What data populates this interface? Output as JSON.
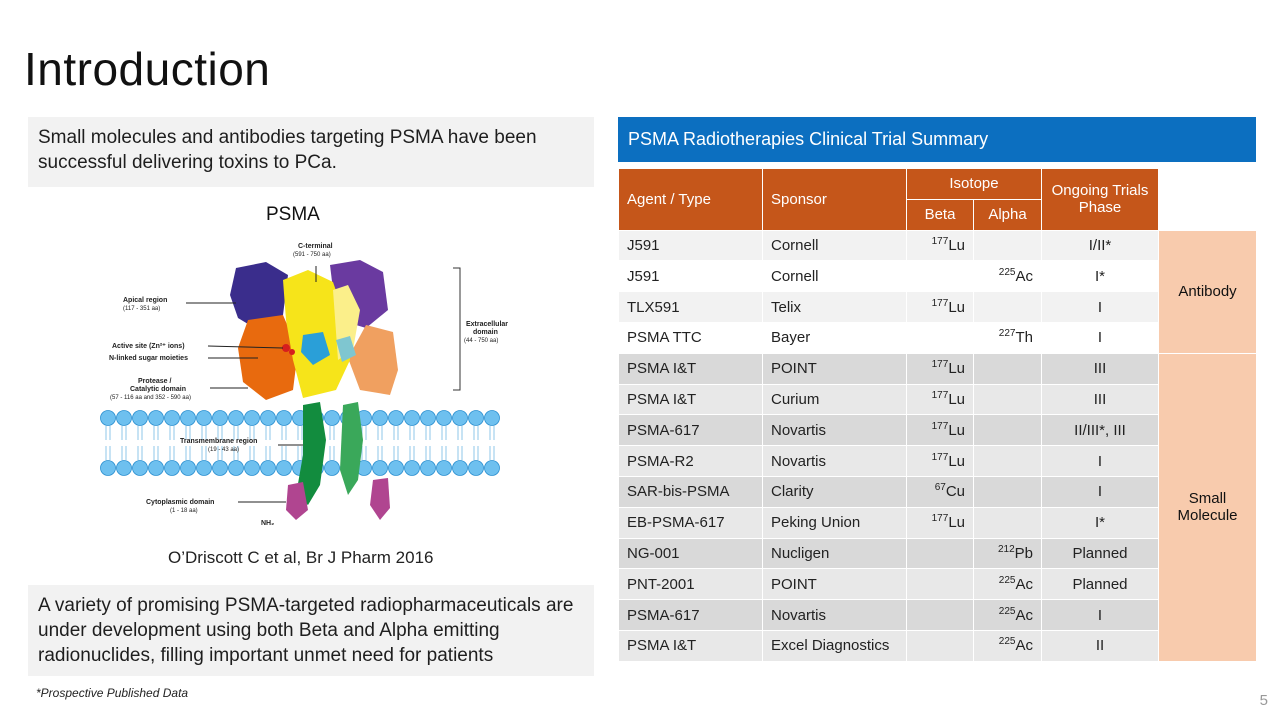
{
  "slide": {
    "title": "Introduction",
    "intro_text": "Small molecules and antibodies targeting PSMA have been successful delivering toxins to PCa.",
    "psma_label": "PSMA",
    "citation": "O’Driscott C et al, Br J Pharm 2016",
    "summary_text": "A variety of promising PSMA-targeted radiopharmaceuticals are under development using both Beta and Alpha emitting radionuclides, filling important unmet need for patients",
    "footnote": "*Prospective Published Data",
    "page_number": "5"
  },
  "figure": {
    "labels": {
      "c_terminal": "C-terminal",
      "c_terminal_range": "(591 - 750 aa)",
      "apical": "Apical region",
      "apical_range": "(117 - 351 aa)",
      "active_site": "Active site (Zn²⁺ ions)",
      "n_linked": "N-linked sugar moieties",
      "protease": "Protease /",
      "catalytic": "Catalytic domain",
      "catalytic_range": "(57 - 116 aa and 352 - 590 aa)",
      "extracellular": "Extracellular",
      "domain": "domain",
      "extracellular_range": "(44 - 750 aa)",
      "transmembrane": "Transmembrane region",
      "transmembrane_range": "(19 - 43 aa)",
      "cytoplasmic": "Cytoplasmic domain",
      "cytoplasmic_range": "(1 - 18 aa)",
      "nh2": "NH₂"
    }
  },
  "table": {
    "title": "PSMA Radiotherapies Clinical Trial Summary",
    "headers": {
      "agent": "Agent / Type",
      "sponsor": "Sponsor",
      "isotope": "Isotope",
      "beta": "Beta",
      "alpha": "Alpha",
      "phase": "Ongoing Trials Phase"
    },
    "groups": {
      "antibody": "Antibody",
      "small_molecule": "Small Molecule"
    },
    "rows": [
      {
        "agent": "J591",
        "sponsor": "Cornell",
        "beta_mass": "177",
        "beta_el": "Lu",
        "alpha_mass": "",
        "alpha_el": "",
        "phase": "I/II*"
      },
      {
        "agent": "J591",
        "sponsor": "Cornell",
        "beta_mass": "",
        "beta_el": "",
        "alpha_mass": "225",
        "alpha_el": "Ac",
        "phase": "I*"
      },
      {
        "agent": "TLX591",
        "sponsor": "Telix",
        "beta_mass": "177",
        "beta_el": "Lu",
        "alpha_mass": "",
        "alpha_el": "",
        "phase": "I"
      },
      {
        "agent": "PSMA TTC",
        "sponsor": "Bayer",
        "beta_mass": "",
        "beta_el": "",
        "alpha_mass": "227",
        "alpha_el": "Th",
        "phase": "I"
      },
      {
        "agent": "PSMA I&T",
        "sponsor": "POINT",
        "beta_mass": "177",
        "beta_el": "Lu",
        "alpha_mass": "",
        "alpha_el": "",
        "phase": "III"
      },
      {
        "agent": "PSMA I&T",
        "sponsor": "Curium",
        "beta_mass": "177",
        "beta_el": "Lu",
        "alpha_mass": "",
        "alpha_el": "",
        "phase": "III"
      },
      {
        "agent": "PSMA-617",
        "sponsor": "Novartis",
        "beta_mass": "177",
        "beta_el": "Lu",
        "alpha_mass": "",
        "alpha_el": "",
        "phase": "II/III*, III"
      },
      {
        "agent": "PSMA-R2",
        "sponsor": "Novartis",
        "beta_mass": "177",
        "beta_el": "Lu",
        "alpha_mass": "",
        "alpha_el": "",
        "phase": "I"
      },
      {
        "agent": "SAR-bis-PSMA",
        "sponsor": "Clarity",
        "beta_mass": "67",
        "beta_el": "Cu",
        "alpha_mass": "",
        "alpha_el": "",
        "phase": "I"
      },
      {
        "agent": "EB-PSMA-617",
        "sponsor": "Peking Union",
        "beta_mass": "177",
        "beta_el": "Lu",
        "alpha_mass": "",
        "alpha_el": "",
        "phase": "I*"
      },
      {
        "agent": "NG-001",
        "sponsor": "Nucligen",
        "beta_mass": "",
        "beta_el": "",
        "alpha_mass": "212",
        "alpha_el": "Pb",
        "phase": "Planned"
      },
      {
        "agent": "PNT-2001",
        "sponsor": "POINT",
        "beta_mass": "",
        "beta_el": "",
        "alpha_mass": "225",
        "alpha_el": "Ac",
        "phase": "Planned"
      },
      {
        "agent": "PSMA-617",
        "sponsor": "Novartis",
        "beta_mass": "",
        "beta_el": "",
        "alpha_mass": "225",
        "alpha_el": "Ac",
        "phase": "I"
      },
      {
        "agent": "PSMA I&T",
        "sponsor": "Excel Diagnostics",
        "beta_mass": "",
        "beta_el": "",
        "alpha_mass": "225",
        "alpha_el": "Ac",
        "phase": "II"
      }
    ]
  }
}
